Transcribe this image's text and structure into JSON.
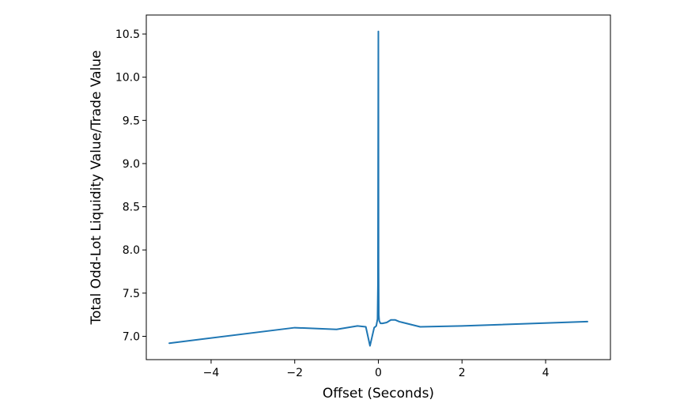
{
  "chart_data": {
    "type": "line",
    "title": "",
    "xlabel": "Offset (Seconds)",
    "ylabel": "Total Odd-Lot Liquidity Value/Trade Value",
    "xlim": [
      -5.55,
      5.55
    ],
    "ylim": [
      6.73,
      10.72
    ],
    "x_ticks": [
      -4,
      -2,
      0,
      2,
      4
    ],
    "x_tick_labels": [
      "−4",
      "−2",
      "0",
      "2",
      "4"
    ],
    "y_ticks": [
      7.0,
      7.5,
      8.0,
      8.5,
      9.0,
      9.5,
      10.0,
      10.5
    ],
    "y_tick_labels": [
      "7.0",
      "7.5",
      "8.0",
      "8.5",
      "9.0",
      "9.5",
      "10.0",
      "10.5"
    ],
    "grid": false,
    "color": "#1f77b4",
    "series": [
      {
        "x": [
          -5,
          -2,
          -1,
          -0.5,
          -0.3,
          -0.2,
          -0.1,
          -0.05,
          -0.02,
          -0.01,
          0,
          0.005,
          0.01,
          0.02,
          0.05,
          0.1,
          0.2,
          0.3,
          0.4,
          0.5,
          1,
          2,
          5
        ],
        "y": [
          6.92,
          7.1,
          7.08,
          7.12,
          7.11,
          6.89,
          7.1,
          7.12,
          7.2,
          7.6,
          10.53,
          7.8,
          7.25,
          7.18,
          7.15,
          7.15,
          7.16,
          7.19,
          7.19,
          7.17,
          7.11,
          7.12,
          7.17
        ]
      }
    ]
  }
}
